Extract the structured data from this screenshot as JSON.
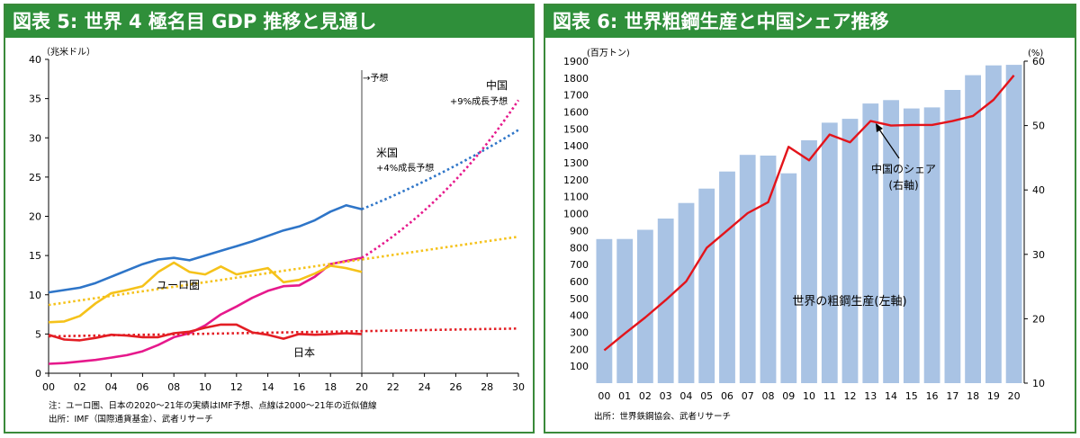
{
  "colors": {
    "title_bg": "#2f8f3a",
    "us": "#2e75c8",
    "china": "#e6198c",
    "euro": "#f5c21a",
    "japan": "#e31e24",
    "bar": "#a9c3e4",
    "share": "#e3141b"
  },
  "chart_data": [
    {
      "type": "line",
      "title": "図表 5: 世界 4 極名目 GDP 推移と見通し",
      "unit_label": "（兆米ドル）",
      "ylim": [
        0,
        40
      ],
      "yticks": [
        "0",
        "5",
        "10",
        "15",
        "20",
        "25",
        "30",
        "35",
        "40"
      ],
      "xlim": [
        0,
        30
      ],
      "xticks": [
        "00",
        "02",
        "04",
        "06",
        "08",
        "10",
        "12",
        "14",
        "16",
        "18",
        "20",
        "22",
        "24",
        "26",
        "28",
        "30"
      ],
      "forecast_marker": "→予想",
      "forecast_start": 20,
      "grid": false,
      "series": [
        {
          "name": "米国",
          "note": "+4%成長予想",
          "key": "us",
          "x": [
            0,
            1,
            2,
            3,
            4,
            5,
            6,
            7,
            8,
            9,
            10,
            11,
            12,
            13,
            14,
            15,
            16,
            17,
            18,
            19,
            20
          ],
          "values": [
            10.3,
            10.6,
            10.9,
            11.5,
            12.3,
            13.1,
            13.9,
            14.5,
            14.7,
            14.4,
            15.0,
            15.6,
            16.2,
            16.8,
            17.5,
            18.2,
            18.7,
            19.5,
            20.6,
            21.4,
            20.9
          ],
          "projection": {
            "start": 20,
            "end": 30,
            "from": 20.9,
            "to": 31.0,
            "curve": "growth"
          }
        },
        {
          "name": "中国",
          "note": "+9%成長予想",
          "key": "china",
          "x": [
            0,
            1,
            2,
            3,
            4,
            5,
            6,
            7,
            8,
            9,
            10,
            11,
            12,
            13,
            14,
            15,
            16,
            17,
            18,
            19,
            20
          ],
          "values": [
            1.2,
            1.3,
            1.5,
            1.7,
            2.0,
            2.3,
            2.8,
            3.6,
            4.6,
            5.1,
            6.1,
            7.5,
            8.5,
            9.6,
            10.5,
            11.1,
            11.2,
            12.3,
            13.9,
            14.3,
            14.7
          ],
          "projection": {
            "start": 20,
            "end": 30,
            "from": 14.7,
            "to": 34.8,
            "curve": "growth"
          }
        },
        {
          "name": "ユーロ圏",
          "key": "euro",
          "x": [
            0,
            1,
            2,
            3,
            4,
            5,
            6,
            7,
            8,
            9,
            10,
            11,
            12,
            13,
            14,
            15,
            16,
            17,
            18,
            19,
            20
          ],
          "values": [
            6.5,
            6.6,
            7.3,
            8.9,
            10.2,
            10.6,
            11.1,
            12.9,
            14.1,
            12.9,
            12.6,
            13.6,
            12.6,
            13.0,
            13.4,
            11.6,
            11.9,
            12.7,
            13.7,
            13.4,
            12.9
          ],
          "projection": {
            "start": 0,
            "end": 30,
            "from": 8.7,
            "to": 17.4,
            "curve": "linear"
          }
        },
        {
          "name": "日本",
          "key": "japan",
          "x": [
            0,
            1,
            2,
            3,
            4,
            5,
            6,
            7,
            8,
            9,
            10,
            11,
            12,
            13,
            14,
            15,
            16,
            17,
            18,
            19,
            20
          ],
          "values": [
            4.9,
            4.3,
            4.2,
            4.5,
            4.9,
            4.8,
            4.6,
            4.6,
            5.1,
            5.3,
            5.8,
            6.2,
            6.2,
            5.2,
            4.9,
            4.4,
            5.0,
            4.9,
            5.0,
            5.1,
            5.0
          ],
          "projection": {
            "start": 0,
            "end": 30,
            "from": 4.7,
            "to": 5.7,
            "curve": "linear"
          }
        }
      ],
      "notes": [
        "注：ユーロ圏、日本の2020～21年の実績はIMF予想、点線は2000～21年の近似値線",
        "出所：IMF（国際通貨基金）、武者リサーチ"
      ]
    },
    {
      "type": "bar",
      "title": "図表 6: 世界粗鋼生産と中国シェア推移",
      "ylabel_left": "(百万トン)",
      "ylabel_right": "(%)",
      "ylim_left": [
        0,
        1900
      ],
      "yticks_left": [
        "100",
        "200",
        "300",
        "400",
        "500",
        "600",
        "700",
        "800",
        "900",
        "1000",
        "1100",
        "1200",
        "1300",
        "1400",
        "1500",
        "1600",
        "1700",
        "1800",
        "1900"
      ],
      "ylim_right": [
        10,
        60
      ],
      "yticks_right": [
        "10",
        "20",
        "30",
        "40",
        "50",
        "60"
      ],
      "categories": [
        "00",
        "01",
        "02",
        "03",
        "04",
        "05",
        "06",
        "07",
        "08",
        "09",
        "10",
        "11",
        "12",
        "13",
        "14",
        "15",
        "16",
        "17",
        "18",
        "19",
        "20"
      ],
      "grid": false,
      "series": [
        {
          "name": "世界の粗鋼生産(左軸)",
          "type": "bar",
          "values": [
            850,
            851,
            905,
            971,
            1063,
            1148,
            1249,
            1347,
            1343,
            1238,
            1433,
            1537,
            1560,
            1650,
            1670,
            1621,
            1627,
            1730,
            1817,
            1875,
            1878
          ]
        },
        {
          "name": "中国のシェア",
          "axis_note": "(右軸)",
          "type": "line",
          "values": [
            15.1,
            17.7,
            20.2,
            22.9,
            25.8,
            31.0,
            33.7,
            36.4,
            38.1,
            46.7,
            44.6,
            48.6,
            47.4,
            50.7,
            50.0,
            50.1,
            50.1,
            50.7,
            51.5,
            54.0,
            57.8
          ]
        }
      ],
      "notes": [
        "出所：世界鉄鋼協会、武者リサーチ"
      ]
    }
  ]
}
